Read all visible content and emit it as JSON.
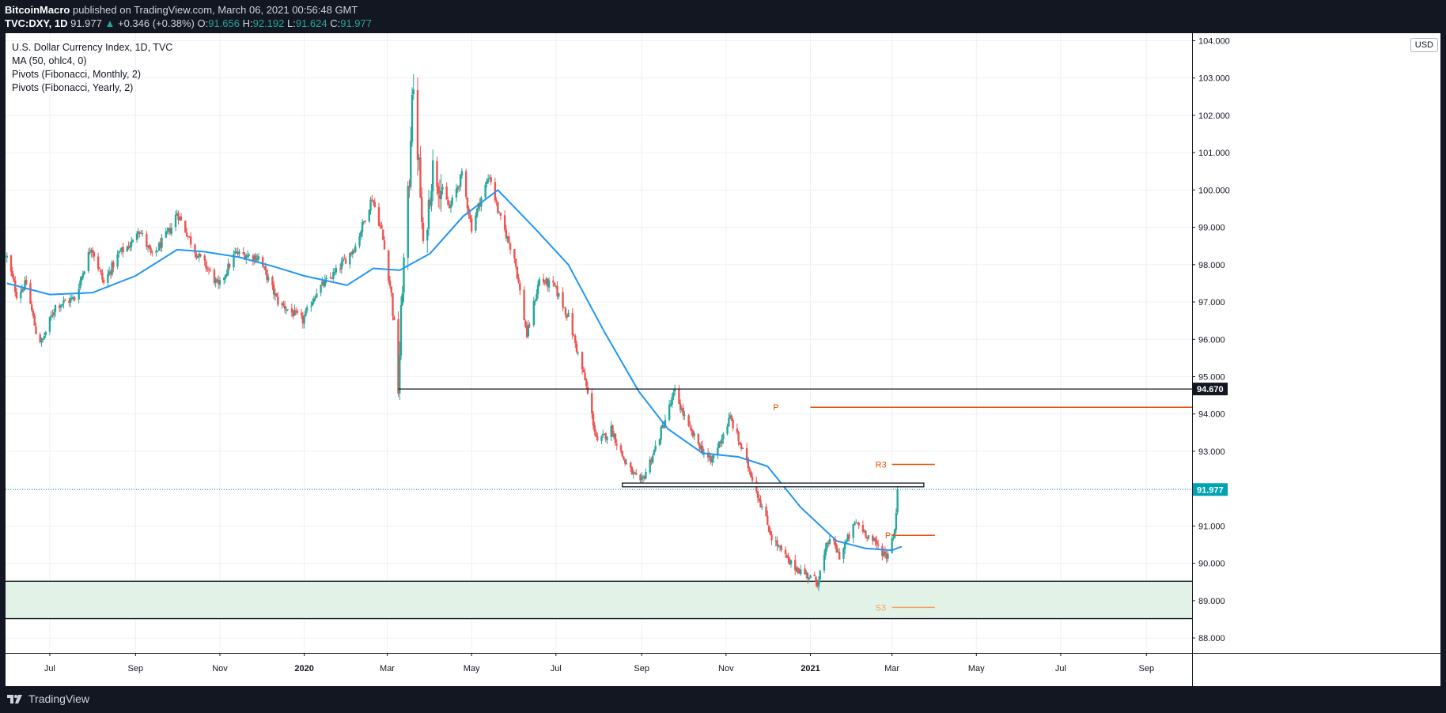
{
  "header": {
    "publisher": "BitcoinMacro",
    "published_text": "published on TradingView.com, March 06, 2021 00:56:48 GMT",
    "symbol": "TVC:DXY, 1D",
    "last": "91.977",
    "change_arrow": "▲",
    "change": "+0.346 (+0.38%)",
    "open_label": "O:",
    "open": "91.656",
    "high_label": "H:",
    "high": "92.192",
    "low_label": "L:",
    "low": "91.624",
    "close_label": "C:",
    "close": "91.977"
  },
  "legend": {
    "title": "U.S. Dollar Currency Index, 1D, TVC",
    "ma": "MA (50, ohlc4, 0)",
    "pivots_monthly": "Pivots (Fibonacci, Monthly, 2)",
    "pivots_yearly": "Pivots (Fibonacci, Yearly, 2)"
  },
  "currency_button": "USD",
  "footer": {
    "brand": "TradingView"
  },
  "colors": {
    "up": "#26a69a",
    "down": "#ef5350",
    "ma": "#2196f3",
    "pivot": "#e65100",
    "support_zone": "#e3f2e7",
    "price_line": "#00a3b4",
    "grid": "#eef0f3"
  },
  "chart_data": {
    "type": "candlestick",
    "title": "U.S. Dollar Currency Index, 1D, TVC",
    "y_axis": {
      "ticks": [
        "88.000",
        "89.000",
        "90.000",
        "91.000",
        "92.000",
        "93.000",
        "94.000",
        "95.000",
        "96.000",
        "97.000",
        "98.000",
        "99.000",
        "100.000",
        "101.000",
        "102.000",
        "103.000",
        "104.000"
      ],
      "ylim": [
        87.6,
        104.2
      ]
    },
    "x_axis": {
      "ticks": [
        {
          "label": "Jul",
          "date": "2019-07-01",
          "bold": false
        },
        {
          "label": "Sep",
          "date": "2019-09-01",
          "bold": false
        },
        {
          "label": "Nov",
          "date": "2019-11-01",
          "bold": false
        },
        {
          "label": "2020",
          "date": "2020-01-01",
          "bold": true
        },
        {
          "label": "Mar",
          "date": "2020-03-01",
          "bold": false
        },
        {
          "label": "May",
          "date": "2020-05-01",
          "bold": false
        },
        {
          "label": "Jul",
          "date": "2020-07-01",
          "bold": false
        },
        {
          "label": "Sep",
          "date": "2020-09-01",
          "bold": false
        },
        {
          "label": "Nov",
          "date": "2020-11-01",
          "bold": false
        },
        {
          "label": "2021",
          "date": "2021-01-01",
          "bold": true
        },
        {
          "label": "Mar",
          "date": "2021-03-01",
          "bold": false
        },
        {
          "label": "May",
          "date": "2021-05-01",
          "bold": false
        },
        {
          "label": "Jul",
          "date": "2021-07-01",
          "bold": false
        },
        {
          "label": "Sep",
          "date": "2021-09-01",
          "bold": false
        }
      ],
      "xlim": [
        "2019-05-30",
        "2021-10-04"
      ]
    },
    "price_path": [
      [
        "2019-05-31",
        98.2
      ],
      [
        "2019-06-07",
        97.2
      ],
      [
        "2019-06-14",
        97.5
      ],
      [
        "2019-06-21",
        96.2
      ],
      [
        "2019-06-25",
        95.9
      ],
      [
        "2019-07-05",
        96.9
      ],
      [
        "2019-07-19",
        97.1
      ],
      [
        "2019-07-31",
        98.5
      ],
      [
        "2019-08-09",
        97.5
      ],
      [
        "2019-08-20",
        98.3
      ],
      [
        "2019-08-30",
        98.6
      ],
      [
        "2019-09-03",
        99.0
      ],
      [
        "2019-09-13",
        98.2
      ],
      [
        "2019-09-27",
        99.0
      ],
      [
        "2019-10-01",
        99.4
      ],
      [
        "2019-10-15",
        98.3
      ],
      [
        "2019-10-25",
        97.8
      ],
      [
        "2019-10-31",
        97.4
      ],
      [
        "2019-11-12",
        98.3
      ],
      [
        "2019-11-29",
        98.2
      ],
      [
        "2019-12-13",
        97.0
      ],
      [
        "2019-12-31",
        96.5
      ],
      [
        "2020-01-10",
        97.3
      ],
      [
        "2020-01-24",
        97.8
      ],
      [
        "2020-02-07",
        98.5
      ],
      [
        "2020-02-19",
        99.8
      ],
      [
        "2020-02-26",
        98.9
      ],
      [
        "2020-03-04",
        97.2
      ],
      [
        "2020-03-09",
        94.7
      ],
      [
        "2020-03-12",
        97.5
      ],
      [
        "2020-03-17",
        100.3
      ],
      [
        "2020-03-19",
        102.8
      ],
      [
        "2020-03-24",
        100.6
      ],
      [
        "2020-03-27",
        98.3
      ],
      [
        "2020-04-03",
        100.6
      ],
      [
        "2020-04-15",
        99.5
      ],
      [
        "2020-04-24",
        100.4
      ],
      [
        "2020-05-01",
        99.0
      ],
      [
        "2020-05-08",
        99.8
      ],
      [
        "2020-05-14",
        100.4
      ],
      [
        "2020-05-21",
        99.3
      ],
      [
        "2020-06-01",
        98.2
      ],
      [
        "2020-06-10",
        96.1
      ],
      [
        "2020-06-19",
        97.6
      ],
      [
        "2020-06-30",
        97.4
      ],
      [
        "2020-07-10",
        96.6
      ],
      [
        "2020-07-22",
        94.9
      ],
      [
        "2020-07-31",
        93.2
      ],
      [
        "2020-08-10",
        93.6
      ],
      [
        "2020-08-20",
        92.7
      ],
      [
        "2020-08-31",
        92.1
      ],
      [
        "2020-09-10",
        93.0
      ],
      [
        "2020-09-25",
        94.6
      ],
      [
        "2020-10-05",
        93.6
      ],
      [
        "2020-10-21",
        92.7
      ],
      [
        "2020-11-04",
        93.9
      ],
      [
        "2020-11-20",
        92.3
      ],
      [
        "2020-12-04",
        90.7
      ],
      [
        "2020-12-17",
        90.0
      ],
      [
        "2021-01-06",
        89.5
      ],
      [
        "2021-01-15",
        90.7
      ],
      [
        "2021-01-22",
        90.2
      ],
      [
        "2021-02-03",
        91.1
      ],
      [
        "2021-02-25",
        90.2
      ],
      [
        "2021-03-03",
        90.9
      ],
      [
        "2021-03-05",
        91.977
      ]
    ],
    "ma_series": {
      "name": "MA (50, ohlc4, 0)",
      "points": [
        [
          "2019-05-31",
          97.5
        ],
        [
          "2019-07-01",
          97.2
        ],
        [
          "2019-08-01",
          97.25
        ],
        [
          "2019-09-01",
          97.7
        ],
        [
          "2019-10-01",
          98.4
        ],
        [
          "2019-10-20",
          98.35
        ],
        [
          "2019-11-15",
          98.2
        ],
        [
          "2019-12-10",
          97.95
        ],
        [
          "2020-01-01",
          97.7
        ],
        [
          "2020-02-01",
          97.45
        ],
        [
          "2020-02-20",
          97.9
        ],
        [
          "2020-03-10",
          97.85
        ],
        [
          "2020-04-01",
          98.3
        ],
        [
          "2020-04-25",
          99.3
        ],
        [
          "2020-05-20",
          100.0
        ],
        [
          "2020-06-15",
          99.0
        ],
        [
          "2020-07-10",
          98.0
        ],
        [
          "2020-08-05",
          96.2
        ],
        [
          "2020-08-30",
          94.6
        ],
        [
          "2020-09-20",
          93.6
        ],
        [
          "2020-10-15",
          92.95
        ],
        [
          "2020-11-10",
          92.85
        ],
        [
          "2020-12-01",
          92.6
        ],
        [
          "2020-12-25",
          91.5
        ],
        [
          "2021-01-20",
          90.6
        ],
        [
          "2021-02-10",
          90.4
        ],
        [
          "2021-03-01",
          90.35
        ],
        [
          "2021-03-08",
          90.45
        ]
      ]
    },
    "horizontal_levels": [
      {
        "name": "march-2020-low-line",
        "price": 94.67,
        "from": "2020-03-09",
        "to": "2021-10-04"
      },
      {
        "name": "support-rectangle",
        "price_top": 92.15,
        "price_bottom": 92.05,
        "from": "2020-08-18",
        "to": "2021-03-24"
      }
    ],
    "support_zone": {
      "price_top": 89.52,
      "price_bottom": 88.52
    },
    "pivots": [
      {
        "label": "P",
        "price": 94.18,
        "from": "2021-01-01",
        "to": "2021-10-04",
        "label_at": "2020-12-05"
      },
      {
        "label": "R3",
        "price": 92.65,
        "from": "2021-03-01",
        "to": "2021-04-01",
        "label_at": "2021-02-17"
      },
      {
        "label": "P",
        "price": 90.75,
        "from": "2021-03-01",
        "to": "2021-04-01",
        "label_at": "2021-02-24"
      },
      {
        "label": "S3",
        "price": 88.82,
        "from": "2021-03-01",
        "to": "2021-04-01",
        "label_at": "2021-02-17"
      }
    ],
    "price_labels": [
      {
        "text": "94.670",
        "price": 94.67,
        "style": "black"
      },
      {
        "text": "91.977",
        "price": 91.977,
        "style": "teal"
      }
    ],
    "current_price_line": 91.977
  }
}
